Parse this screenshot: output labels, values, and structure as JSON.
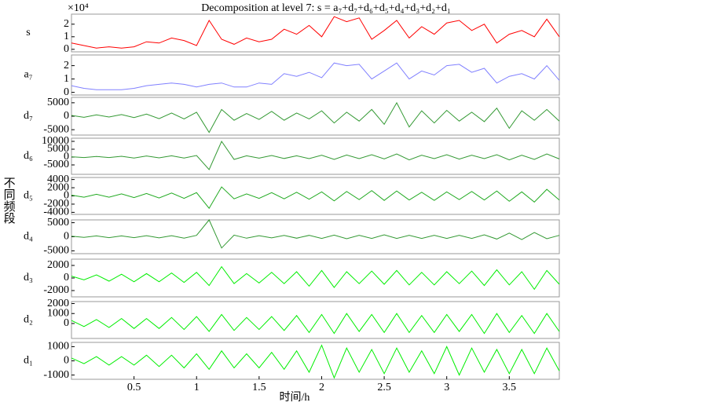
{
  "chart_data": [
    {
      "type": "line",
      "title": "Decomposition at level 7: s = a₇+d₇+d₆+d₅+d₄+d₃+d₂+d₁",
      "y_label": "不同频段",
      "label": "s",
      "y_scale_label": "×10⁴",
      "color": "#ff0000",
      "x": [
        0,
        0.1,
        0.2,
        0.3,
        0.4,
        0.5,
        0.6,
        0.7,
        0.8,
        0.9,
        1,
        1.1,
        1.2,
        1.3,
        1.4,
        1.5,
        1.6,
        1.7,
        1.8,
        1.9,
        2,
        2.1,
        2.2,
        2.3,
        2.4,
        2.5,
        2.6,
        2.7,
        2.8,
        2.9,
        3,
        3.1,
        3.2,
        3.3,
        3.4,
        3.5,
        3.6,
        3.7,
        3.8,
        3.9
      ],
      "values": [
        0.5,
        0.3,
        0.1,
        0.2,
        0.1,
        0.2,
        0.6,
        0.5,
        0.9,
        0.7,
        0.3,
        2.3,
        0.8,
        0.4,
        0.9,
        0.6,
        0.8,
        1.6,
        1.2,
        1.9,
        1.0,
        2.6,
        2.2,
        2.5,
        0.8,
        1.5,
        2.3,
        0.9,
        1.8,
        1.2,
        2.1,
        2.3,
        1.5,
        2.0,
        0.5,
        1.2,
        1.5,
        1.0,
        2.4,
        1.0
      ],
      "xlim": [
        0,
        3.9
      ],
      "ylim": [
        -0.2,
        2.8
      ],
      "yticks": [
        0,
        1,
        2
      ]
    },
    {
      "type": "line",
      "label": "a₇",
      "color": "#8080ff",
      "x": [
        0,
        0.1,
        0.2,
        0.3,
        0.4,
        0.5,
        0.6,
        0.7,
        0.8,
        0.9,
        1,
        1.1,
        1.2,
        1.3,
        1.4,
        1.5,
        1.6,
        1.7,
        1.8,
        1.9,
        2,
        2.1,
        2.2,
        2.3,
        2.4,
        2.5,
        2.6,
        2.7,
        2.8,
        2.9,
        3,
        3.1,
        3.2,
        3.3,
        3.4,
        3.5,
        3.6,
        3.7,
        3.8,
        3.9
      ],
      "values": [
        0.5,
        0.3,
        0.2,
        0.2,
        0.2,
        0.3,
        0.5,
        0.6,
        0.7,
        0.6,
        0.4,
        0.6,
        0.7,
        0.4,
        0.4,
        0.7,
        0.6,
        1.4,
        1.2,
        1.5,
        1.1,
        2.2,
        2.0,
        2.1,
        1.0,
        1.6,
        2.2,
        1.0,
        1.6,
        1.3,
        2.0,
        2.1,
        1.5,
        1.8,
        0.7,
        1.2,
        1.4,
        1.0,
        2.0,
        0.9
      ],
      "xlim": [
        0,
        3.9
      ],
      "ylim": [
        -0.2,
        2.8
      ],
      "yticks": [
        0,
        1,
        2
      ]
    },
    {
      "type": "line",
      "label": "d₇",
      "color": "#339933",
      "x": [
        0,
        0.1,
        0.2,
        0.3,
        0.4,
        0.5,
        0.6,
        0.7,
        0.8,
        0.9,
        1,
        1.1,
        1.2,
        1.3,
        1.4,
        1.5,
        1.6,
        1.7,
        1.8,
        1.9,
        2,
        2.1,
        2.2,
        2.3,
        2.4,
        2.5,
        2.6,
        2.7,
        2.8,
        2.9,
        3,
        3.1,
        3.2,
        3.3,
        3.4,
        3.5,
        3.6,
        3.7,
        3.8,
        3.9
      ],
      "values": [
        300,
        -400,
        500,
        -300,
        600,
        -500,
        800,
        -900,
        1200,
        -1000,
        1500,
        -6000,
        2500,
        -1500,
        1000,
        -1200,
        1800,
        -1500,
        1200,
        -1000,
        2000,
        -2500,
        1500,
        -1800,
        2500,
        -3000,
        5000,
        -4000,
        2000,
        -2500,
        2200,
        -1800,
        1500,
        -2000,
        3000,
        -4500,
        2000,
        -1500,
        2500,
        -1800
      ],
      "xlim": [
        0,
        3.9
      ],
      "ylim": [
        -7000,
        7000
      ],
      "yticks": [
        -5000,
        0,
        5000
      ]
    },
    {
      "type": "line",
      "label": "d₆",
      "color": "#339933",
      "x": [
        0,
        0.1,
        0.2,
        0.3,
        0.4,
        0.5,
        0.6,
        0.7,
        0.8,
        0.9,
        1,
        1.1,
        1.2,
        1.3,
        1.4,
        1.5,
        1.6,
        1.7,
        1.8,
        1.9,
        2,
        2.1,
        2.2,
        2.3,
        2.4,
        2.5,
        2.6,
        2.7,
        2.8,
        2.9,
        3,
        3.1,
        3.2,
        3.3,
        3.4,
        3.5,
        3.6,
        3.7,
        3.8,
        3.9
      ],
      "values": [
        200,
        -300,
        400,
        -300,
        500,
        -600,
        700,
        -500,
        800,
        -600,
        1000,
        -8000,
        10000,
        -1500,
        800,
        -700,
        1000,
        -900,
        800,
        -1000,
        1200,
        -1500,
        1300,
        -1000,
        1500,
        -1200,
        2000,
        -1800,
        1200,
        -1000,
        1500,
        -1300,
        1200,
        -1000,
        1500,
        -1800,
        1200,
        -1500,
        2000,
        -1200
      ],
      "xlim": [
        0,
        3.9
      ],
      "ylim": [
        -11000,
        12000
      ],
      "yticks": [
        -5000,
        0,
        5000,
        10000
      ]
    },
    {
      "type": "line",
      "label": "d₅",
      "color": "#22aa22",
      "x": [
        0,
        0.1,
        0.2,
        0.3,
        0.4,
        0.5,
        0.6,
        0.7,
        0.8,
        0.9,
        1,
        1.1,
        1.2,
        1.3,
        1.4,
        1.5,
        1.6,
        1.7,
        1.8,
        1.9,
        2,
        2.1,
        2.2,
        2.3,
        2.4,
        2.5,
        2.6,
        2.7,
        2.8,
        2.9,
        3,
        3.1,
        3.2,
        3.3,
        3.4,
        3.5,
        3.6,
        3.7,
        3.8,
        3.9
      ],
      "values": [
        200,
        -300,
        400,
        -300,
        500,
        -400,
        600,
        -500,
        700,
        -600,
        800,
        -3000,
        2200,
        -700,
        500,
        -600,
        800,
        -700,
        900,
        -800,
        1000,
        -1200,
        1100,
        -900,
        1300,
        -1100,
        1200,
        -1000,
        900,
        -1100,
        1000,
        -900,
        1100,
        -1000,
        1200,
        -1300,
        1000,
        -1500,
        1600,
        -1000
      ],
      "xlim": [
        0,
        3.9
      ],
      "ylim": [
        -4500,
        4500
      ],
      "yticks": [
        -4000,
        -2000,
        0,
        2000,
        4000
      ]
    },
    {
      "type": "line",
      "label": "d₄",
      "color": "#339933",
      "x": [
        0,
        0.1,
        0.2,
        0.3,
        0.4,
        0.5,
        0.6,
        0.7,
        0.8,
        0.9,
        1,
        1.1,
        1.2,
        1.3,
        1.4,
        1.5,
        1.6,
        1.7,
        1.8,
        1.9,
        2,
        2.1,
        2.2,
        2.3,
        2.4,
        2.5,
        2.6,
        2.7,
        2.8,
        2.9,
        3,
        3.1,
        3.2,
        3.3,
        3.4,
        3.5,
        3.6,
        3.7,
        3.8,
        3.9
      ],
      "values": [
        200,
        -200,
        300,
        -300,
        300,
        -300,
        400,
        -400,
        400,
        -500,
        500,
        6000,
        -4000,
        600,
        -500,
        400,
        -400,
        500,
        -500,
        500,
        -600,
        600,
        -700,
        500,
        -600,
        700,
        -600,
        500,
        -600,
        500,
        -600,
        500,
        -600,
        700,
        -800,
        1300,
        -1000,
        1500,
        -700,
        500
      ],
      "xlim": [
        0,
        3.9
      ],
      "ylim": [
        -6000,
        6000
      ],
      "yticks": [
        -5000,
        0,
        5000
      ]
    },
    {
      "type": "line",
      "label": "d₃",
      "color": "#00ee00",
      "x": [
        0,
        0.1,
        0.2,
        0.3,
        0.4,
        0.5,
        0.6,
        0.7,
        0.8,
        0.9,
        1,
        1.1,
        1.2,
        1.3,
        1.4,
        1.5,
        1.6,
        1.7,
        1.8,
        1.9,
        2,
        2.1,
        2.2,
        2.3,
        2.4,
        2.5,
        2.6,
        2.7,
        2.8,
        2.9,
        3,
        3.1,
        3.2,
        3.3,
        3.4,
        3.5,
        3.6,
        3.7,
        3.8,
        3.9
      ],
      "values": [
        300,
        -300,
        500,
        -500,
        600,
        -600,
        700,
        -600,
        800,
        -700,
        900,
        -1200,
        1800,
        -900,
        700,
        -800,
        900,
        -900,
        1000,
        -1300,
        1200,
        -1500,
        1000,
        -900,
        1100,
        -1000,
        1200,
        -1100,
        900,
        -1100,
        1000,
        -900,
        1100,
        -1200,
        1300,
        -1100,
        1000,
        -1800,
        1200,
        -1000
      ],
      "xlim": [
        0,
        3.9
      ],
      "ylim": [
        -3000,
        3000
      ],
      "yticks": [
        -2000,
        0,
        2000
      ]
    },
    {
      "type": "line",
      "label": "d₂",
      "color": "#00ee00",
      "x": [
        0,
        0.1,
        0.2,
        0.3,
        0.4,
        0.5,
        0.6,
        0.7,
        0.8,
        0.9,
        1,
        1.1,
        1.2,
        1.3,
        1.4,
        1.5,
        1.6,
        1.7,
        1.8,
        1.9,
        2,
        2.1,
        2.2,
        2.3,
        2.4,
        2.5,
        2.6,
        2.7,
        2.8,
        2.9,
        3,
        3.1,
        3.2,
        3.3,
        3.4,
        3.5,
        3.6,
        3.7,
        3.8,
        3.9
      ],
      "values": [
        300,
        -300,
        400,
        -400,
        500,
        -500,
        500,
        -500,
        600,
        -600,
        700,
        -800,
        900,
        -700,
        600,
        -600,
        700,
        -700,
        800,
        -900,
        900,
        -1000,
        1000,
        -800,
        900,
        -900,
        1000,
        -900,
        800,
        -900,
        900,
        -800,
        900,
        -1000,
        1000,
        -900,
        800,
        -1000,
        1000,
        -800
      ],
      "xlim": [
        0,
        3.9
      ],
      "ylim": [
        -1500,
        2200
      ],
      "yticks": [
        0,
        1000,
        2000
      ]
    },
    {
      "type": "line",
      "label": "d₁",
      "color": "#00ee00",
      "x_label": "时间/h",
      "x": [
        0,
        0.1,
        0.2,
        0.3,
        0.4,
        0.5,
        0.6,
        0.7,
        0.8,
        0.9,
        1,
        1.1,
        1.2,
        1.3,
        1.4,
        1.5,
        1.6,
        1.7,
        1.8,
        1.9,
        2,
        2.1,
        2.2,
        2.3,
        2.4,
        2.5,
        2.6,
        2.7,
        2.8,
        2.9,
        3,
        3.1,
        3.2,
        3.3,
        3.4,
        3.5,
        3.6,
        3.7,
        3.8,
        3.9
      ],
      "values": [
        200,
        -200,
        300,
        -300,
        300,
        -300,
        400,
        -400,
        400,
        -500,
        500,
        -600,
        700,
        -500,
        500,
        -500,
        600,
        -600,
        700,
        -800,
        1100,
        -1200,
        900,
        -800,
        800,
        -900,
        900,
        -800,
        700,
        -900,
        1000,
        -1000,
        900,
        -800,
        800,
        -900,
        800,
        -900,
        900,
        -700
      ],
      "xlim": [
        0,
        3.9
      ],
      "ylim": [
        -1300,
        1300
      ],
      "yticks": [
        -1000,
        0,
        1000
      ],
      "xticks": [
        0.5,
        1,
        1.5,
        2,
        2.5,
        3,
        3.5
      ]
    }
  ]
}
